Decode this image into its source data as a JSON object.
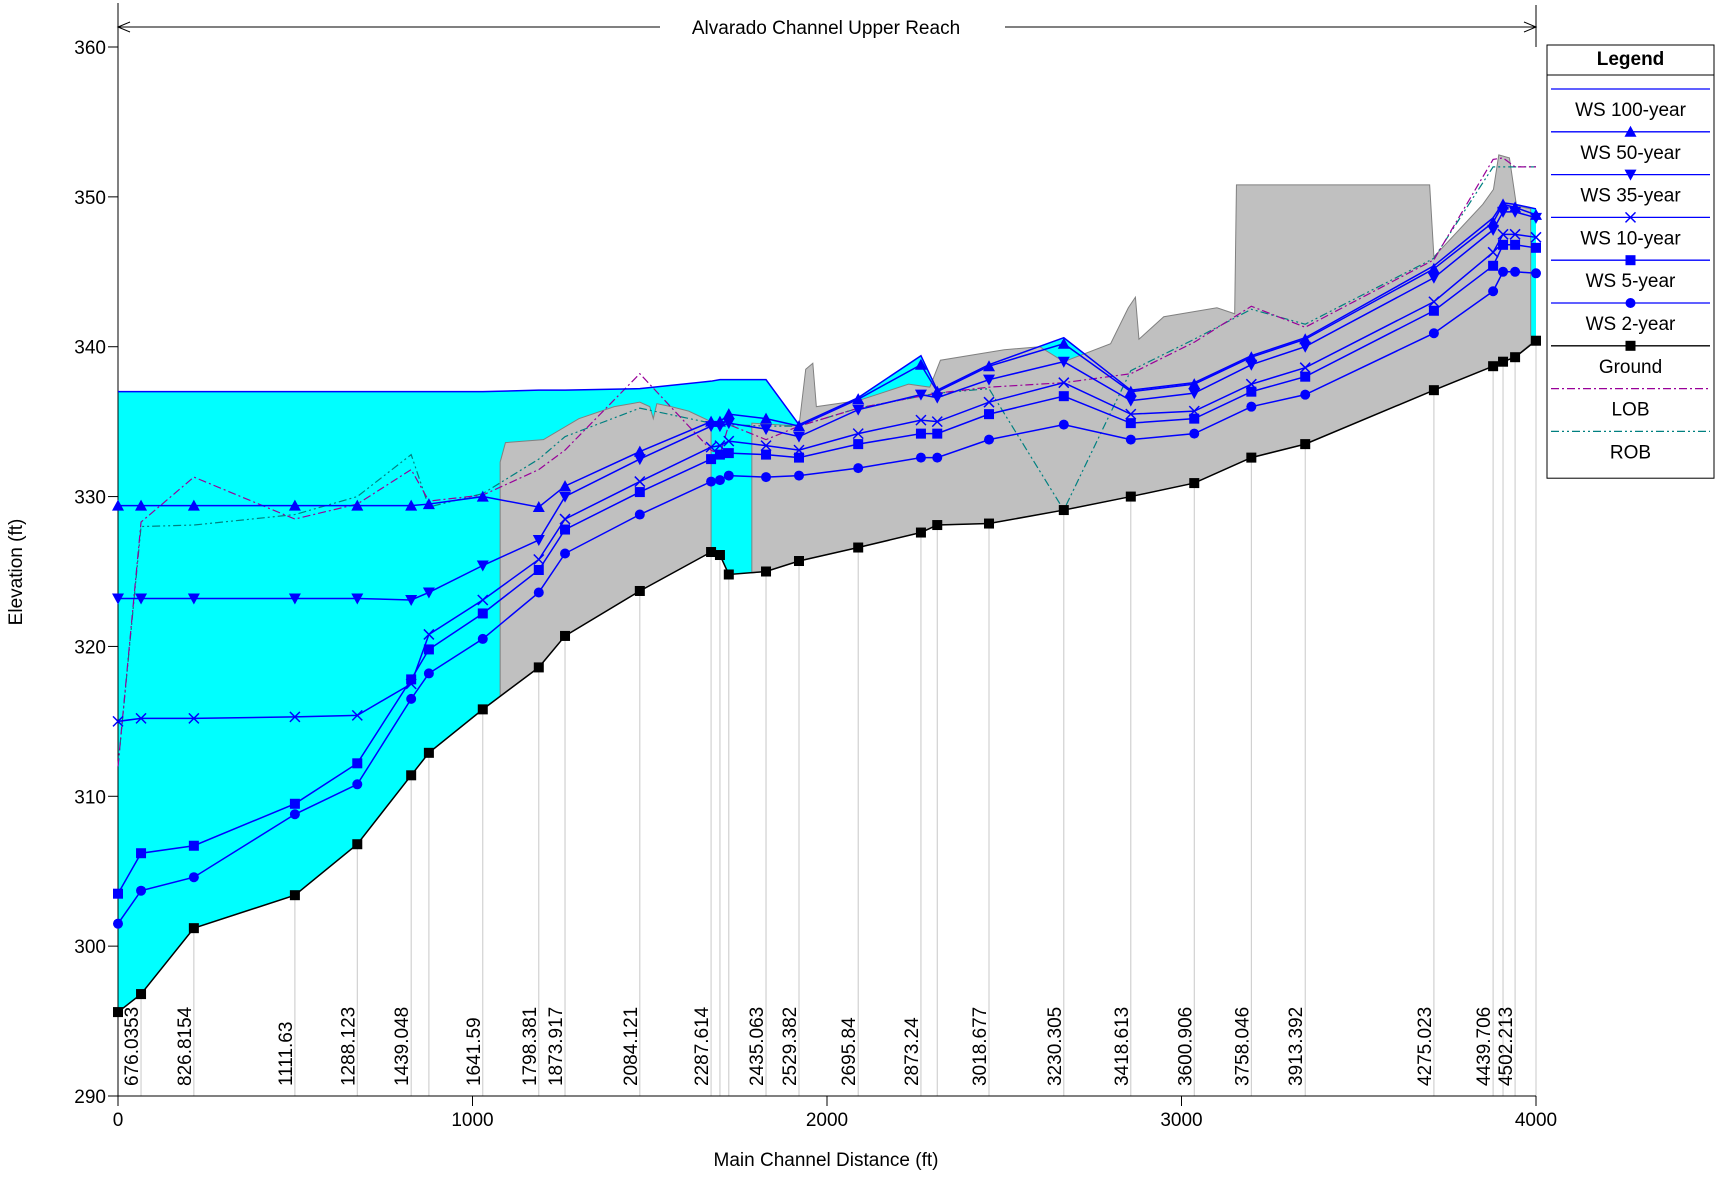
{
  "chart_data": {
    "type": "profile",
    "annotation": "Alvarado Channel Upper Reach",
    "x_label": "Main Channel Distance (ft)",
    "y_label": "Elevation (ft)",
    "legend_title": "Legend",
    "xlim": [
      0,
      4000
    ],
    "xticks": [
      0,
      1000,
      2000,
      3000,
      4000
    ],
    "ylim": [
      290,
      360
    ],
    "yticks": [
      290,
      300,
      310,
      320,
      330,
      340,
      350,
      360
    ],
    "x": [
      0,
      65,
      214,
      499,
      675,
      827,
      877,
      1029,
      1187,
      1261,
      1472,
      1673,
      1698,
      1723,
      1828,
      1921,
      2088,
      2265,
      2311,
      2457,
      2668,
      2857,
      3036,
      3197,
      3349,
      3712,
      3879,
      3907,
      3941,
      4000
    ],
    "series": [
      {
        "name": "WS  100-year",
        "color": "#0000ff",
        "marker": "none",
        "fill": "#00ffff",
        "values": [
          337.0,
          337.0,
          337.0,
          337.0,
          337.0,
          337.0,
          337.0,
          337.0,
          337.1,
          337.1,
          337.2,
          337.7,
          337.8,
          337.8,
          337.8,
          334.8,
          336.6,
          339.4,
          337.1,
          338.8,
          340.6,
          337.1,
          337.6,
          339.4,
          340.6,
          345.4,
          348.6,
          349.6,
          349.5,
          349.2
        ]
      },
      {
        "name": "WS  50-year",
        "color": "#0000ff",
        "marker": "triangle-up",
        "values": [
          329.4,
          329.4,
          329.4,
          329.4,
          329.4,
          329.4,
          329.5,
          330.0,
          329.3,
          330.7,
          333.0,
          335.0,
          335.0,
          335.5,
          335.2,
          334.7,
          336.5,
          338.8,
          337.0,
          338.7,
          340.2,
          337.0,
          337.5,
          339.3,
          340.5,
          345.2,
          348.3,
          349.5,
          349.3,
          348.8
        ]
      },
      {
        "name": "WS  35-year",
        "color": "#0000ff",
        "marker": "triangle-down",
        "values": [
          323.2,
          323.2,
          323.2,
          323.2,
          323.2,
          323.1,
          323.6,
          325.4,
          327.1,
          330.0,
          332.5,
          334.7,
          334.7,
          334.9,
          334.5,
          334.0,
          335.8,
          336.8,
          336.6,
          337.8,
          339.0,
          336.4,
          336.9,
          338.8,
          340.0,
          344.6,
          347.8,
          349.0,
          349.0,
          348.6
        ]
      },
      {
        "name": "WS  10-year",
        "color": "#0000ff",
        "marker": "x",
        "values": [
          315.0,
          315.2,
          315.2,
          315.3,
          315.4,
          317.5,
          320.8,
          323.1,
          325.8,
          328.5,
          331.0,
          333.3,
          333.4,
          333.7,
          333.4,
          333.1,
          334.2,
          335.1,
          335.0,
          336.3,
          337.6,
          335.5,
          335.7,
          337.5,
          338.6,
          343.0,
          346.3,
          347.5,
          347.5,
          347.3
        ]
      },
      {
        "name": "WS  5-year",
        "color": "#0000ff",
        "marker": "square",
        "values": [
          303.5,
          306.2,
          306.7,
          309.5,
          312.2,
          317.8,
          319.8,
          322.2,
          325.1,
          327.8,
          330.3,
          332.5,
          332.8,
          332.9,
          332.8,
          332.6,
          333.5,
          334.2,
          334.2,
          335.5,
          336.7,
          334.9,
          335.2,
          337.0,
          338.0,
          342.4,
          345.4,
          346.8,
          346.8,
          346.6
        ]
      },
      {
        "name": "WS  2-year",
        "color": "#0000ff",
        "marker": "circle",
        "values": [
          301.5,
          303.7,
          304.6,
          308.8,
          310.8,
          316.5,
          318.2,
          320.5,
          323.6,
          326.2,
          328.8,
          331.0,
          331.1,
          331.4,
          331.3,
          331.4,
          331.9,
          332.6,
          332.6,
          333.8,
          334.8,
          333.8,
          334.2,
          336.0,
          336.8,
          340.9,
          343.7,
          345.0,
          345.0,
          344.9
        ]
      },
      {
        "name": "Ground",
        "color": "#000000",
        "marker": "square",
        "ground": true,
        "values": [
          295.6,
          296.8,
          301.2,
          303.4,
          306.8,
          311.4,
          312.9,
          315.8,
          318.6,
          320.7,
          323.7,
          326.3,
          326.1,
          324.8,
          325.0,
          325.7,
          326.6,
          327.6,
          328.1,
          328.2,
          329.1,
          330.0,
          330.9,
          332.6,
          333.5,
          337.1,
          338.7,
          339.0,
          339.3,
          340.4
        ]
      },
      {
        "name": "LOB",
        "color": "#990099",
        "marker": "none",
        "dash": "8 3 2 3",
        "values": [
          312.0,
          328.3,
          331.3,
          328.5,
          329.5,
          331.8,
          329.7,
          330.1,
          331.8,
          333.1,
          338.2,
          333.1,
          332.8,
          334.8,
          333.8,
          334.7,
          335.9,
          336.7,
          336.9,
          337.3,
          337.6,
          338.2,
          340.3,
          342.7,
          341.3,
          345.8,
          352.5,
          352.6,
          352.0,
          352.0
        ]
      },
      {
        "name": "ROB",
        "color": "#008080",
        "marker": "none",
        "dash": "8 3 2 3 2 3",
        "values": [
          312.0,
          328.0,
          328.1,
          328.8,
          330.0,
          332.8,
          329.3,
          330.2,
          332.5,
          334.0,
          335.9,
          334.9,
          334.8,
          334.8,
          334.7,
          334.7,
          335.9,
          336.7,
          336.9,
          337.2,
          329.1,
          338.4,
          340.5,
          342.5,
          341.5,
          345.9,
          352.0,
          352.0,
          352.0,
          352.0
        ]
      }
    ],
    "terrain": {
      "color": "#c0c0c0",
      "x": [
        1078,
        1078,
        1093,
        1200,
        1300,
        1400,
        1472,
        1500,
        1510,
        1520,
        1560,
        1610,
        1673,
        1673,
        1472,
        1261,
        1187,
        null,
        1788,
        1788,
        1921,
        1940,
        1960,
        1970,
        2088,
        2230,
        2290,
        2320,
        2500,
        2600,
        2668,
        2800,
        2850,
        2870,
        2880,
        2950,
        3100,
        3150,
        3155,
        3700,
        3712,
        3850,
        3880,
        3895,
        3925,
        3945,
        3985,
        3985,
        3941,
        3907,
        3879,
        3712,
        3349,
        3197,
        3036,
        2857,
        2668,
        2457,
        2311,
        2265,
        2088,
        1921,
        1828
      ],
      "y": [
        316.7,
        332.3,
        333.6,
        333.8,
        335.2,
        336.0,
        336.3,
        336.0,
        335.2,
        336.2,
        336.0,
        335.7,
        335.0,
        326.3,
        323.7,
        320.7,
        318.6,
        null,
        324.9,
        334.9,
        334.7,
        338.5,
        338.9,
        336.0,
        336.4,
        337.5,
        337.3,
        339.1,
        339.8,
        340.0,
        339.0,
        340.2,
        342.6,
        343.3,
        340.5,
        342.0,
        342.6,
        342.2,
        350.8,
        350.8,
        346.0,
        349.5,
        350.5,
        352.8,
        352.6,
        349.4,
        349.2,
        340.2,
        339.3,
        339.0,
        338.7,
        337.1,
        333.5,
        332.6,
        330.9,
        330.0,
        329.1,
        328.2,
        328.1,
        327.6,
        326.6,
        325.7,
        325.0
      ]
    },
    "stations": [
      {
        "x": 65,
        "label": "676.0353"
      },
      {
        "x": 214,
        "label": "826.8154"
      },
      {
        "x": 499,
        "label": "1111.63"
      },
      {
        "x": 675,
        "label": "1288.123"
      },
      {
        "x": 827,
        "label": "1439.048"
      },
      {
        "x": 1029,
        "label": "1641.59"
      },
      {
        "x": 1187,
        "label": "1798.381"
      },
      {
        "x": 1261,
        "label": "1873.917"
      },
      {
        "x": 1472,
        "label": "2084.121"
      },
      {
        "x": 1673,
        "label": "2287.614"
      },
      {
        "x": 1828,
        "label": "2435.063"
      },
      {
        "x": 1921,
        "label": "2529.382"
      },
      {
        "x": 2088,
        "label": "2695.84"
      },
      {
        "x": 2265,
        "label": "2873.24"
      },
      {
        "x": 2457,
        "label": "3018.677"
      },
      {
        "x": 2668,
        "label": "3230.305"
      },
      {
        "x": 2857,
        "label": "3418.613"
      },
      {
        "x": 3036,
        "label": "3600.906"
      },
      {
        "x": 3197,
        "label": "3758.046"
      },
      {
        "x": 3349,
        "label": "3913.392"
      },
      {
        "x": 3712,
        "label": "4275.023"
      },
      {
        "x": 3879,
        "label": "4439.706"
      },
      {
        "x": 3941,
        "label": "4502.213"
      }
    ]
  }
}
